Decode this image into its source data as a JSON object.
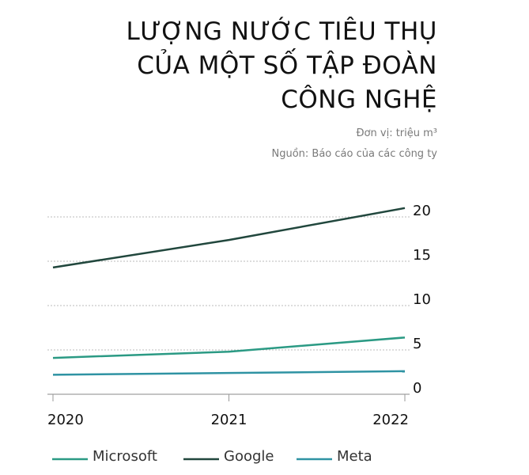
{
  "chart_data": {
    "type": "line",
    "title_lines": [
      "LƯỢNG NƯỚC TIÊU THỤ",
      "CỦA MỘT SỐ TẬP ĐOÀN",
      "CÔNG NGHỆ"
    ],
    "unit": "Đơn vị: triệu m³",
    "source": "Nguồn: Báo cáo của các công ty",
    "x": [
      "2020",
      "2021",
      "2022"
    ],
    "yticks": [
      0,
      5,
      10,
      15,
      20
    ],
    "ytick_labels": [
      "0",
      "5",
      "10",
      "15",
      "20"
    ],
    "ylim": [
      0,
      20
    ],
    "grid": true,
    "legend_position": "bottom",
    "series": [
      {
        "name": "Microsoft",
        "values": [
          4.1,
          4.8,
          6.4
        ],
        "color": "#2b9a84"
      },
      {
        "name": "Google",
        "values": [
          14.3,
          17.4,
          21.0
        ],
        "color": "#21473d"
      },
      {
        "name": "Meta",
        "values": [
          2.2,
          2.4,
          2.6
        ],
        "color": "#2f93a3"
      }
    ]
  }
}
